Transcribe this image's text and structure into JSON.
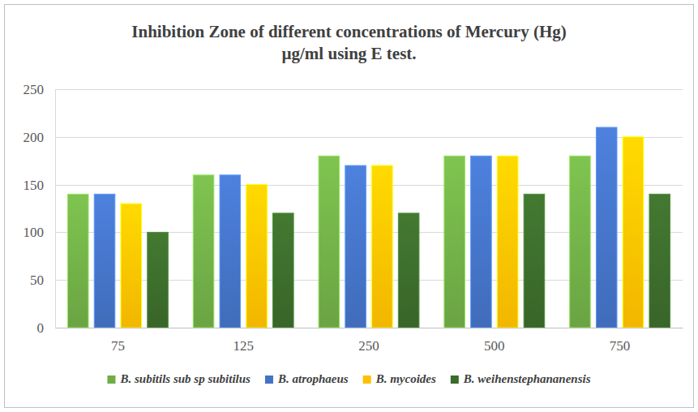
{
  "chart_data": {
    "type": "bar",
    "title": "Inhibition Zone of different concentrations of Mercury (Hg)\nµg/ml using E test.",
    "categories": [
      "75",
      "125",
      "250",
      "500",
      "750"
    ],
    "series": [
      {
        "name": "B. subitils sub sp subitilus",
        "color": "#70ad47",
        "values": [
          140,
          160,
          180,
          180,
          180
        ]
      },
      {
        "name": "B. atrophaeus",
        "color": "#4472c4",
        "values": [
          140,
          160,
          170,
          180,
          210
        ]
      },
      {
        "name": "B. mycoides",
        "color": "#ffc000",
        "values": [
          130,
          150,
          170,
          180,
          200
        ]
      },
      {
        "name": "B. weihenstephananensis",
        "color": "#3b6b2b",
        "values": [
          100,
          120,
          120,
          140,
          140
        ]
      }
    ],
    "ylim": [
      0,
      250
    ],
    "yticks": [
      0,
      50,
      100,
      150,
      200,
      250
    ],
    "grid": true,
    "legend": "bottom"
  }
}
